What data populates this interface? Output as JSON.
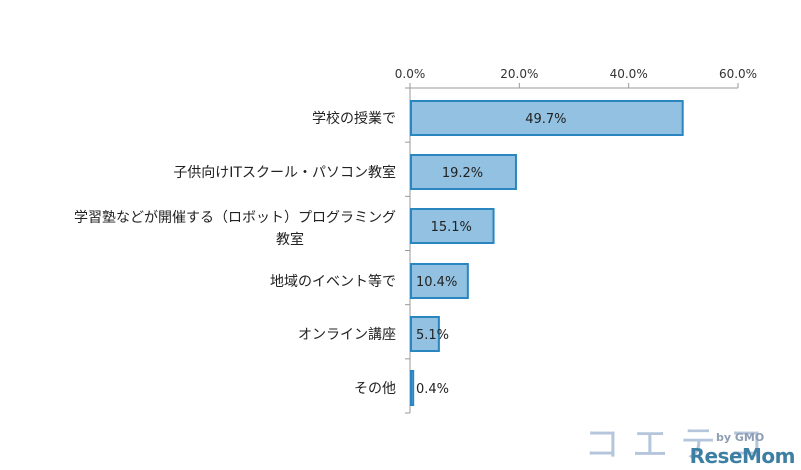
{
  "chart_data": {
    "type": "bar",
    "orientation": "horizontal",
    "categories": [
      "学校の授業で",
      "子供向けITスクール・パソコン教室",
      [
        "学習塾などが開催する（ロボット）プログラミング",
        "教室"
      ],
      "地域のイベント等で",
      "オンライン講座",
      "その他"
    ],
    "values": [
      49.7,
      19.2,
      15.1,
      10.4,
      5.1,
      0.4
    ],
    "value_labels": [
      "49.7%",
      "19.2%",
      "15.1%",
      "10.4%",
      "5.1%",
      "0.4%"
    ],
    "xlim": [
      0,
      60
    ],
    "x_ticks": [
      0,
      20,
      40,
      60
    ],
    "x_tick_labels": [
      "0.0%",
      "20.0%",
      "40.0%",
      "60.0%"
    ],
    "axis_position": "top",
    "grid": false,
    "bar_color": "#92c1e1",
    "bar_edge_color": "#2a86c0"
  },
  "watermark": {
    "logo_text": "コエテコ",
    "logo_sub": "by GMO",
    "site": "ReseMom"
  }
}
